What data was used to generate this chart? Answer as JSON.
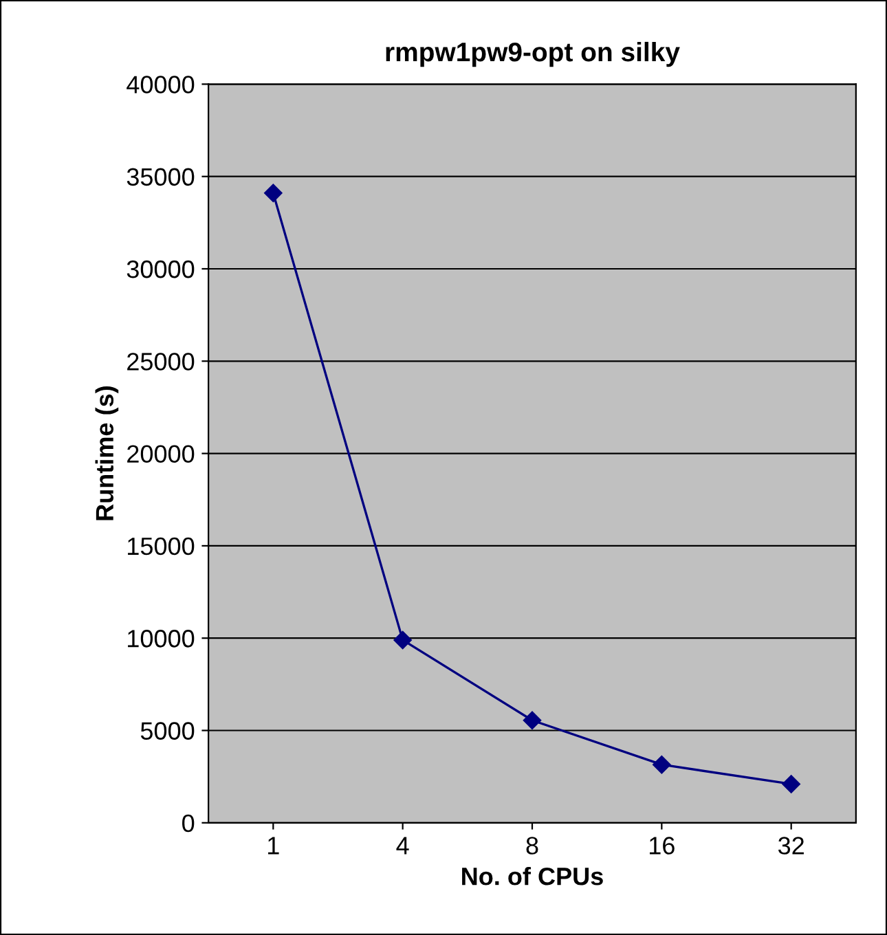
{
  "chart_data": {
    "type": "line",
    "title": "rmpw1pw9-opt on silky",
    "xlabel": "No. of CPUs",
    "ylabel": "Runtime (s)",
    "categories": [
      "1",
      "4",
      "8",
      "16",
      "32"
    ],
    "series": [
      {
        "color": "#000080",
        "values": [
          34100,
          9900,
          5550,
          3150,
          2100
        ]
      }
    ],
    "ylim": [
      0,
      40000
    ],
    "yticks": [
      0,
      5000,
      10000,
      15000,
      20000,
      25000,
      30000,
      35000,
      40000
    ],
    "grid": "y",
    "marker": "diamond",
    "line_style": "solid"
  }
}
